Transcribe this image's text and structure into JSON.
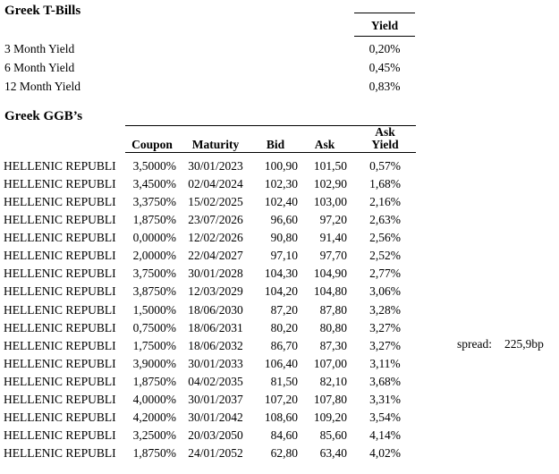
{
  "page": {
    "background": "#ffffff",
    "text_color": "#000000"
  },
  "t_bills": {
    "title": "Greek T-Bills",
    "yield_header": "Yield",
    "rows": [
      {
        "label": "3 Month Yield",
        "value": "0,20%"
      },
      {
        "label": "6 Month Yield",
        "value": "0,45%"
      },
      {
        "label": "12 Month Yield",
        "value": "0,83%"
      }
    ]
  },
  "ggb": {
    "title": "Greek GGB’s",
    "columns": {
      "coupon": "Coupon",
      "maturity": "Maturity",
      "bid": "Bid",
      "ask": "Ask",
      "ask_yield_line1": "Ask",
      "ask_yield_line2": "Yield"
    },
    "rows": [
      {
        "name": "HELLENIC REPUBLI",
        "coupon": "3,5000%",
        "maturity": "30/01/2023",
        "bid": "100,90",
        "ask": "101,50",
        "ask_yield": "0,57%"
      },
      {
        "name": "HELLENIC REPUBLI",
        "coupon": "3,4500%",
        "maturity": "02/04/2024",
        "bid": "102,30",
        "ask": "102,90",
        "ask_yield": "1,68%"
      },
      {
        "name": "HELLENIC REPUBLI",
        "coupon": "3,3750%",
        "maturity": "15/02/2025",
        "bid": "102,40",
        "ask": "103,00",
        "ask_yield": "2,16%"
      },
      {
        "name": "HELLENIC REPUBLI",
        "coupon": "1,8750%",
        "maturity": "23/07/2026",
        "bid": "96,60",
        "ask": "97,20",
        "ask_yield": "2,63%"
      },
      {
        "name": "HELLENIC REPUBLI",
        "coupon": "0,0000%",
        "maturity": "12/02/2026",
        "bid": "90,80",
        "ask": "91,40",
        "ask_yield": "2,56%"
      },
      {
        "name": "HELLENIC REPUBLI",
        "coupon": "2,0000%",
        "maturity": "22/04/2027",
        "bid": "97,10",
        "ask": "97,70",
        "ask_yield": "2,52%"
      },
      {
        "name": "HELLENIC REPUBLI",
        "coupon": "3,7500%",
        "maturity": "30/01/2028",
        "bid": "104,30",
        "ask": "104,90",
        "ask_yield": "2,77%"
      },
      {
        "name": "HELLENIC REPUBLI",
        "coupon": "3,8750%",
        "maturity": "12/03/2029",
        "bid": "104,20",
        "ask": "104,80",
        "ask_yield": "3,06%"
      },
      {
        "name": "HELLENIC REPUBLI",
        "coupon": "1,5000%",
        "maturity": "18/06/2030",
        "bid": "87,20",
        "ask": "87,80",
        "ask_yield": "3,28%"
      },
      {
        "name": "HELLENIC REPUBLI",
        "coupon": "0,7500%",
        "maturity": "18/06/2031",
        "bid": "80,20",
        "ask": "80,80",
        "ask_yield": "3,27%"
      },
      {
        "name": "HELLENIC REPUBLI",
        "coupon": "1,7500%",
        "maturity": "18/06/2032",
        "bid": "86,70",
        "ask": "87,30",
        "ask_yield": "3,27%"
      },
      {
        "name": "HELLENIC REPUBLI",
        "coupon": "3,9000%",
        "maturity": "30/01/2033",
        "bid": "106,40",
        "ask": "107,00",
        "ask_yield": "3,11%"
      },
      {
        "name": "HELLENIC REPUBLI",
        "coupon": "1,8750%",
        "maturity": "04/02/2035",
        "bid": "81,50",
        "ask": "82,10",
        "ask_yield": "3,68%"
      },
      {
        "name": "HELLENIC REPUBLI",
        "coupon": "4,0000%",
        "maturity": "30/01/2037",
        "bid": "107,20",
        "ask": "107,80",
        "ask_yield": "3,31%"
      },
      {
        "name": "HELLENIC REPUBLI",
        "coupon": "4,2000%",
        "maturity": "30/01/2042",
        "bid": "108,60",
        "ask": "109,20",
        "ask_yield": "3,54%"
      },
      {
        "name": "HELLENIC REPUBLI",
        "coupon": "3,2500%",
        "maturity": "20/03/2050",
        "bid": "84,60",
        "ask": "85,60",
        "ask_yield": "4,14%"
      },
      {
        "name": "HELLENIC REPUBLI",
        "coupon": "1,8750%",
        "maturity": "24/01/2052",
        "bid": "62,80",
        "ask": "63,40",
        "ask_yield": "4,02%"
      }
    ]
  },
  "spread": {
    "label": "spread:",
    "value": "225,9bp"
  }
}
